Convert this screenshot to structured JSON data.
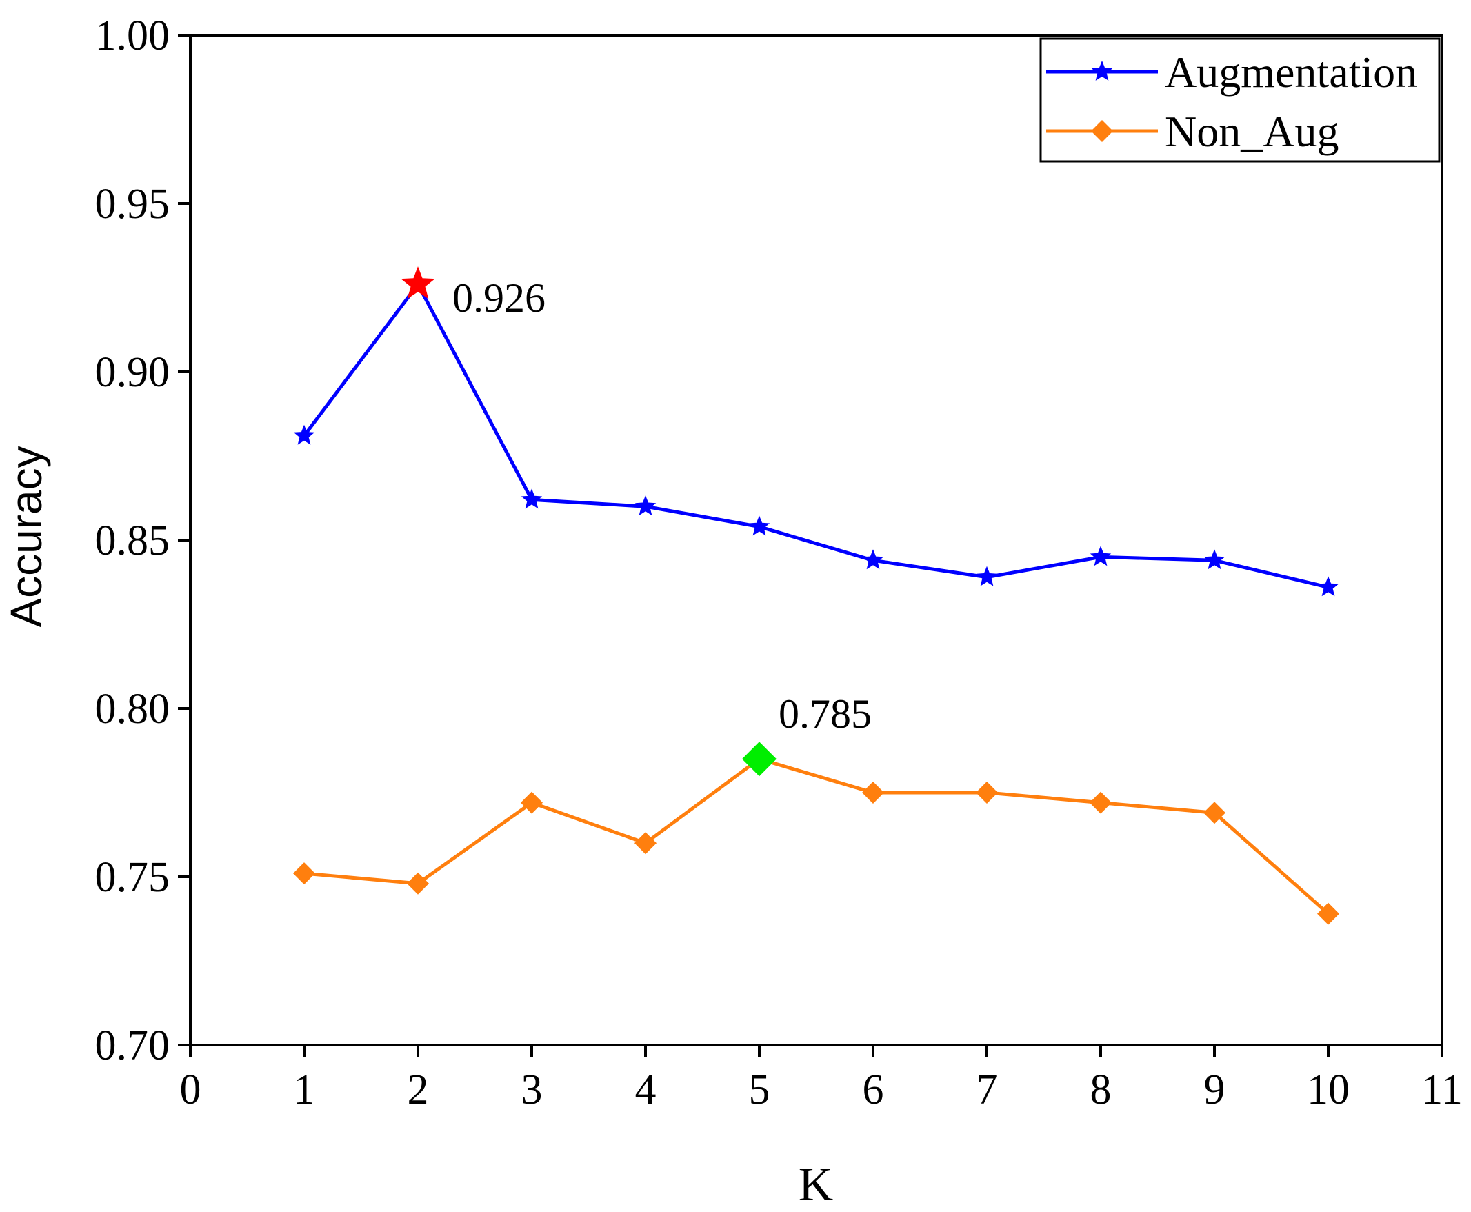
{
  "chart_data": {
    "type": "line",
    "title": "",
    "xlabel": "K",
    "ylabel": "Accuracy",
    "xlim": [
      0,
      11
    ],
    "ylim": [
      0.7,
      1.0
    ],
    "xticks": [
      0,
      1,
      2,
      3,
      4,
      5,
      6,
      7,
      8,
      9,
      10,
      11
    ],
    "xtick_labels": [
      "0",
      "1",
      "2",
      "3",
      "4",
      "5",
      "6",
      "7",
      "8",
      "9",
      "10",
      "11"
    ],
    "yticks": [
      0.7,
      0.75,
      0.8,
      0.85,
      0.9,
      0.95,
      1.0
    ],
    "ytick_labels": [
      "0.70",
      "0.75",
      "0.80",
      "0.85",
      "0.90",
      "0.95",
      "1.00"
    ],
    "grid": false,
    "legend_position": "top-right",
    "x": [
      1,
      2,
      3,
      4,
      5,
      6,
      7,
      8,
      9,
      10
    ],
    "series": [
      {
        "name": "Augmentation",
        "color": "#0000ff",
        "marker": "star",
        "values": [
          0.881,
          0.926,
          0.862,
          0.86,
          0.854,
          0.844,
          0.839,
          0.845,
          0.844,
          0.836
        ]
      },
      {
        "name": "Non_Aug",
        "color": "#ff7f0e",
        "marker": "diamond",
        "values": [
          0.751,
          0.748,
          0.772,
          0.76,
          0.785,
          0.775,
          0.775,
          0.772,
          0.769,
          0.739
        ]
      }
    ],
    "highlights": [
      {
        "series": "Augmentation",
        "x": 2,
        "y": 0.926,
        "label": "0.926",
        "color": "#ff0000",
        "marker": "star"
      },
      {
        "series": "Non_Aug",
        "x": 5,
        "y": 0.785,
        "label": "0.785",
        "color": "#00ee00",
        "marker": "diamond"
      }
    ]
  }
}
